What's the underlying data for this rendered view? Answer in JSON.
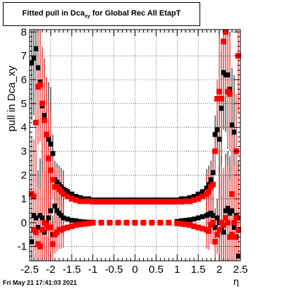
{
  "title": {
    "main": "Fitted pull in Dca",
    "sub": "xy",
    "rest": " for Global Rec All EtapT"
  },
  "timestamp": "Fri May 21 17:41:03 2021",
  "chart_data": {
    "type": "scatter",
    "title": "Fitted pull in Dca_xy for Global Rec All EtapT",
    "xlabel": "η",
    "ylabel": "pull in Dca_xy",
    "xlim": [
      -2.5,
      2.5
    ],
    "ylim": [
      -1.6,
      8.1
    ],
    "x_ticks": [
      -2.5,
      -2,
      -1.5,
      -1,
      -0.5,
      0,
      0.5,
      1,
      1.5,
      2,
      2.5
    ],
    "x_tick_labels": [
      "-2.5",
      "-2",
      "-1.5",
      "-1",
      "-0.5",
      "0",
      "0.5",
      "1",
      "1.5",
      "2",
      "2.5"
    ],
    "y_ticks": [
      -1,
      0,
      1,
      2,
      3,
      4,
      5,
      6,
      7,
      8
    ],
    "y_tick_labels": [
      "-1",
      "0",
      "1",
      "2",
      "3",
      "4",
      "5",
      "6",
      "7",
      "8"
    ],
    "grid": true,
    "series": [
      {
        "color": "#000000",
        "marker": "square",
        "x": [
          -2.45,
          -2.4,
          -2.35,
          -2.3,
          -2.25,
          -2.2,
          -2.15,
          -2.1,
          -2.05,
          -2.0,
          -1.95,
          -1.9,
          -1.85,
          -1.8,
          -1.75,
          -1.7,
          -1.65,
          -1.6,
          -1.5,
          -1.4,
          -1.3,
          -1.2,
          -1.1,
          -1.0,
          -0.9,
          -0.8,
          -0.7,
          -0.6,
          -0.5,
          -0.4,
          -0.3,
          -0.2,
          -0.1,
          0.0,
          0.1,
          0.2,
          0.3,
          0.4,
          0.5,
          0.6,
          0.7,
          0.8,
          0.9,
          1.0,
          1.1,
          1.2,
          1.3,
          1.4,
          1.5,
          1.6,
          1.7,
          1.75,
          1.8,
          1.85,
          1.9,
          1.95,
          2.0,
          2.05,
          2.1,
          2.15,
          2.2,
          2.25,
          2.3,
          2.35,
          2.4,
          2.45
        ],
        "y": [
          6.7,
          6.9,
          7.3,
          6.5,
          5.9,
          4.9,
          4.5,
          3.7,
          3.5,
          3.3,
          2.9,
          1.8,
          1.7,
          1.6,
          1.5,
          1.4,
          1.35,
          1.3,
          1.2,
          1.1,
          1.05,
          1.0,
          1.0,
          0.95,
          0.95,
          0.95,
          0.95,
          0.95,
          0.95,
          0.95,
          0.95,
          0.95,
          0.95,
          0.95,
          0.95,
          0.95,
          0.95,
          0.95,
          0.95,
          0.95,
          0.95,
          0.95,
          0.95,
          0.95,
          1.0,
          1.0,
          1.05,
          1.1,
          1.2,
          1.3,
          1.45,
          1.6,
          1.8,
          2.1,
          3.7,
          3.9,
          3.5,
          4.8,
          6.3,
          6.2,
          6.2,
          5.6,
          4.1,
          3.8,
          0.3,
          0.2
        ]
      },
      {
        "color": "#000000",
        "marker": "square",
        "x": [
          -2.45,
          -2.4,
          -2.35,
          -2.3,
          -2.25,
          -2.2,
          -2.15,
          -2.1,
          -2.05,
          -2.0,
          -1.95,
          -1.9,
          -1.85,
          -1.8,
          -1.75,
          -1.7,
          -1.6,
          -1.5,
          -1.4,
          -1.3,
          -1.2,
          -1.1,
          -1.0,
          -0.8,
          -0.6,
          -0.4,
          -0.2,
          0.0,
          0.2,
          0.4,
          0.6,
          0.8,
          1.0,
          1.1,
          1.2,
          1.3,
          1.4,
          1.5,
          1.6,
          1.7,
          1.75,
          1.8,
          1.85,
          1.9,
          1.95,
          2.0,
          2.05,
          2.1,
          2.15,
          2.2,
          2.25,
          2.3,
          2.35,
          2.4,
          2.45
        ],
        "y": [
          -0.8,
          0.3,
          0.2,
          -0.2,
          0.3,
          0.2,
          -0.4,
          0.0,
          0.2,
          0.5,
          -0.5,
          0.7,
          0.5,
          0.4,
          0.3,
          0.2,
          0.15,
          0.1,
          0.08,
          0.05,
          0.03,
          0.02,
          0.02,
          0.0,
          0.0,
          0.0,
          0.0,
          0.0,
          0.0,
          0.0,
          0.0,
          0.0,
          0.05,
          0.08,
          0.1,
          0.12,
          0.15,
          0.2,
          0.25,
          0.3,
          0.35,
          0.4,
          0.3,
          -0.2,
          0.2,
          0.0,
          -0.3,
          -0.4,
          0.5,
          0.6,
          0.4,
          0.5,
          -0.2,
          -0.6,
          -1.4
        ]
      },
      {
        "color": "#ff0000",
        "marker": "square",
        "x": [
          -2.45,
          -2.4,
          -2.35,
          -2.3,
          -2.25,
          -2.2,
          -2.15,
          -2.1,
          -2.05,
          -2.0,
          -1.95,
          -1.9,
          -1.85,
          -1.8,
          -1.75,
          -1.7,
          -1.6,
          -1.5,
          -1.4,
          -1.3,
          -1.2,
          -1.1,
          -1.0,
          -0.9,
          -0.8,
          -0.7,
          -0.6,
          -0.5,
          -0.4,
          -0.3,
          -0.2,
          -0.1,
          0.0,
          0.1,
          0.2,
          0.3,
          0.4,
          0.5,
          0.6,
          0.7,
          0.8,
          0.9,
          1.0,
          1.1,
          1.2,
          1.3,
          1.4,
          1.5,
          1.6,
          1.7,
          1.75,
          1.8,
          1.85,
          1.9,
          1.95,
          2.0,
          2.05,
          2.1,
          2.15,
          2.2,
          2.25,
          2.3,
          2.35,
          2.4,
          2.45
        ],
        "y": [
          1.2,
          1.1,
          4.2,
          5.7,
          5.8,
          5.0,
          4.3,
          3.7,
          2.7,
          2.2,
          1.8,
          1.5,
          1.5,
          1.4,
          1.3,
          1.2,
          1.1,
          1.0,
          0.95,
          0.9,
          0.9,
          0.9,
          0.88,
          0.88,
          0.88,
          0.88,
          0.88,
          0.88,
          0.88,
          0.88,
          0.88,
          0.88,
          0.88,
          0.88,
          0.88,
          0.88,
          0.88,
          0.88,
          0.88,
          0.88,
          0.88,
          0.88,
          0.88,
          0.88,
          0.9,
          0.9,
          0.95,
          1.0,
          1.1,
          1.2,
          1.3,
          1.5,
          1.6,
          3.0,
          5.2,
          5.5,
          5.2,
          7.6,
          8.0,
          5.5,
          5.4,
          1.2,
          -0.6,
          3.0,
          7.0
        ]
      },
      {
        "color": "#ff0000",
        "marker": "square",
        "x": [
          -2.45,
          -2.4,
          -2.35,
          -2.3,
          -2.25,
          -2.2,
          -2.15,
          -2.1,
          -2.05,
          -2.0,
          -1.95,
          -1.9,
          -1.85,
          -1.8,
          -1.75,
          -1.7,
          -1.6,
          -1.5,
          -1.4,
          -1.3,
          -1.2,
          -1.1,
          -1.0,
          -0.8,
          -0.6,
          -0.4,
          -0.2,
          0.0,
          0.2,
          0.4,
          0.6,
          0.8,
          1.0,
          1.1,
          1.2,
          1.3,
          1.4,
          1.5,
          1.6,
          1.7,
          1.75,
          1.8,
          1.85,
          1.9,
          1.95,
          2.0,
          2.05,
          2.1,
          2.15,
          2.2,
          2.25,
          2.3,
          2.35,
          2.4,
          2.45
        ],
        "y": [
          1.2,
          -0.3,
          -0.4,
          -0.9,
          -1.0,
          -0.3,
          0.0,
          -0.1,
          -0.2,
          -0.2,
          -0.9,
          -0.5,
          -0.4,
          -0.3,
          -0.3,
          -0.25,
          -0.2,
          -0.15,
          -0.1,
          -0.07,
          -0.05,
          -0.03,
          0.0,
          0.0,
          0.0,
          0.0,
          0.0,
          0.0,
          0.0,
          0.0,
          0.0,
          0.0,
          -0.03,
          -0.05,
          -0.07,
          -0.1,
          -0.15,
          -0.2,
          -0.25,
          -0.3,
          -0.35,
          -0.1,
          0.0,
          -0.8,
          -0.5,
          -0.3,
          0.0,
          -0.1,
          0.2,
          0.0,
          -0.6,
          -0.5,
          0.0,
          0.2,
          -0.3
        ]
      }
    ]
  }
}
